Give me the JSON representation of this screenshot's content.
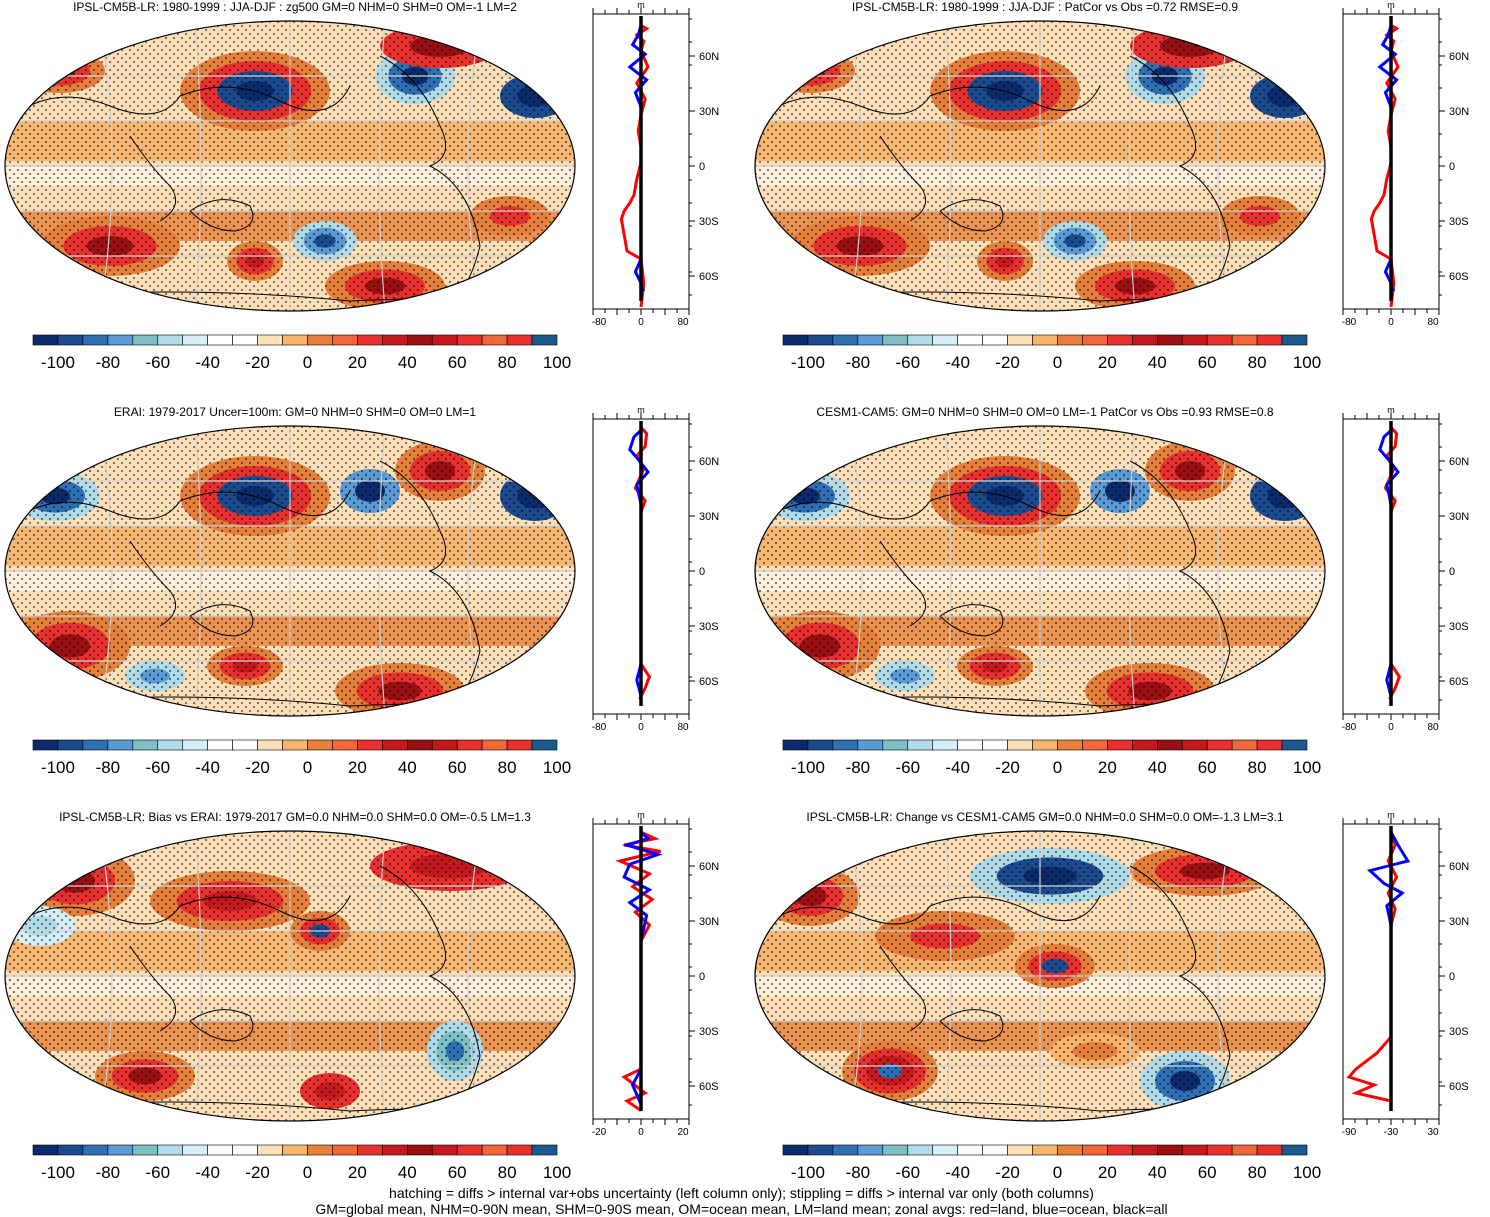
{
  "colors": {
    "palette": [
      "#0b2a6b",
      "#1b4b8f",
      "#2f70b5",
      "#5a9bd5",
      "#7cc0c4",
      "#b0dbe8",
      "#d7eff6",
      "#ffffff",
      "#ffffff",
      "#fde0b8",
      "#f9b46e",
      "#e6803a",
      "#f0673a",
      "#e8302e",
      "#c51a1d",
      "#9a0f12",
      "#c51a1d",
      "#e8302e",
      "#1b5a8f"
    ],
    "land_line": "#ff0000",
    "ocean_line": "#0000ff",
    "all_line": "#000000"
  },
  "colorbar": {
    "labels": [
      "-100",
      "-80",
      "-60",
      "-40",
      "-20",
      "0",
      "20",
      "40",
      "60",
      "80",
      "100"
    ]
  },
  "lat_labels": [
    "60N",
    "30N",
    "0",
    "30S",
    "60S"
  ],
  "zonal_unit": "m",
  "panels": [
    {
      "title": "IPSL-CM5B-LR: 1980-1999 : JJA-DJF : zg500 GM=0 NHM=0 SHM=0 OM=-1 LM=2",
      "x_ticks": [
        "-80",
        "0",
        "80"
      ],
      "variant": 0
    },
    {
      "title": "IPSL-CM5B-LR: 1980-1999 : JJA-DJF : PatCor vs Obs =0.72 RMSE=0.9",
      "x_ticks": [
        "-80",
        "0",
        "80"
      ],
      "variant": 0
    },
    {
      "title": "ERAI: 1979-2017 Uncer=100m: GM=0 NHM=0 SHM=0 OM=0 LM=1",
      "x_ticks": [
        "-80",
        "0",
        "80"
      ],
      "variant": 1
    },
    {
      "title": "CESM1-CAM5: GM=0 NHM=0 SHM=0 OM=0 LM=-1 PatCor vs Obs =0.93 RMSE=0.8",
      "x_ticks": [
        "-80",
        "0",
        "80"
      ],
      "variant": 1
    },
    {
      "title": "IPSL-CM5B-LR: Bias vs ERAI: 1979-2017 GM=0.0 NHM=0.0 SHM=0.0 OM=-0.5 LM=1.3",
      "x_ticks": [
        "-20",
        "0",
        "20"
      ],
      "variant": 2
    },
    {
      "title": "IPSL-CM5B-LR: Change vs CESM1-CAM5 GM=0.0 NHM=0.0 SHM=0.0 OM=-1.3 LM=3.1",
      "x_ticks": [
        "-90",
        "-30",
        "30"
      ],
      "variant": 3
    }
  ],
  "footer": {
    "line1": "hatching = diffs > internal var+obs uncertainty (left column only); stippling = diffs > internal var only (both columns)",
    "line2": "GM=global mean, NHM=0-90N mean, SHM=0-90S mean, OM=ocean mean, LM=land mean; zonal avgs: red=land, blue=ocean, black=all"
  },
  "chart_data": {
    "type": "heatmap",
    "colorbar_range": [
      -100,
      100
    ],
    "zonal_lat_range": [
      -90,
      90
    ]
  }
}
